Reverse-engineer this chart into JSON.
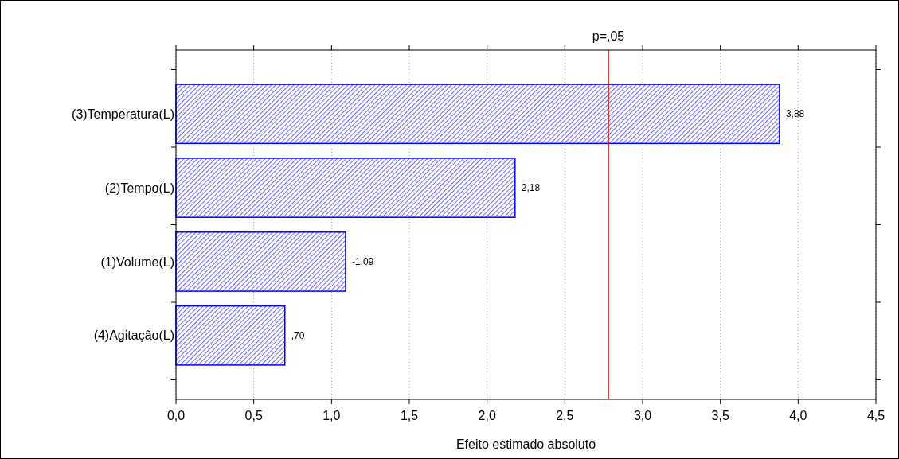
{
  "chart_data": {
    "type": "bar",
    "orientation": "horizontal",
    "xlabel": "Efeito estimado absoluto",
    "categories": [
      "(3)Temperatura(L)",
      "(2)Tempo(L)",
      "(1)Volume(L)",
      "(4)Agitação(L)"
    ],
    "values": [
      3.88,
      2.18,
      1.09,
      0.7
    ],
    "annotations": [
      {
        "text": "3,88",
        "x": 3.88,
        "y": "(3)Temperatura(L)"
      },
      {
        "text": "2,18",
        "x": 2.18,
        "y": "(2)Tempo(L)"
      },
      {
        "text": "-1,09",
        "x": 1.09,
        "y": "(1)Volume(L)"
      },
      {
        "text": ",70",
        "x": 0.7,
        "y": "(4)Agitação(L)"
      }
    ],
    "color": "#0000ff",
    "xlim": [
      0,
      4.5
    ],
    "xticks": [
      {
        "value": 0,
        "label": "0,0"
      },
      {
        "value": 0.5,
        "label": "0,5"
      },
      {
        "value": 1,
        "label": "1,0"
      },
      {
        "value": 1.5,
        "label": "1,5"
      },
      {
        "value": 2,
        "label": "2,0"
      },
      {
        "value": 2.5,
        "label": "2,5"
      },
      {
        "value": 3,
        "label": "3,0"
      },
      {
        "value": 3.5,
        "label": "3,5"
      },
      {
        "value": 4,
        "label": "4,0"
      },
      {
        "value": 4.5,
        "label": "4,5"
      }
    ],
    "grid": "x",
    "ref_lines": [
      {
        "axis": "x",
        "value": 2.78,
        "label": "p=,05",
        "color": "#e00000"
      }
    ]
  }
}
